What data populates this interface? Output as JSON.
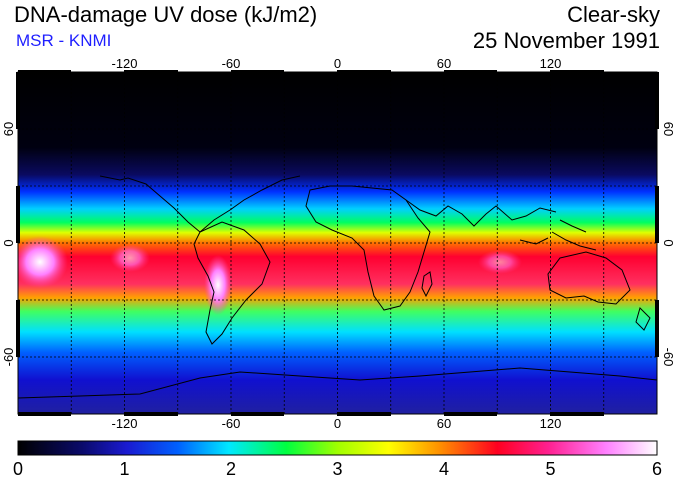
{
  "header": {
    "title": "DNA-damage UV dose (kJ/m2)",
    "subtitle": "MSR - KNMI",
    "mode": "Clear-sky",
    "date": "25 November 1991"
  },
  "map": {
    "projection": "equirectangular",
    "lon_range": [
      -180,
      180
    ],
    "lat_range": [
      -90,
      90
    ],
    "lon_ticks": [
      -120,
      -60,
      0,
      60,
      120
    ],
    "lat_ticks": [
      60,
      0,
      -60
    ],
    "lon_tick_labels": [
      "-120",
      "-60",
      "0",
      "60",
      "120"
    ],
    "lat_tick_labels": [
      "60",
      "0",
      "-60"
    ],
    "grid": true,
    "grid_spacing_deg": 30
  },
  "colorbar": {
    "min": 0,
    "max": 6,
    "tick_labels": [
      "0",
      "1",
      "2",
      "3",
      "4",
      "5",
      "6"
    ],
    "colors": [
      "#000000",
      "#1a1aa0",
      "#0040ff",
      "#00e8ff",
      "#00ff40",
      "#c8ff00",
      "#ffff00",
      "#ff8000",
      "#ff0030",
      "#ff40a0",
      "#ff80ff",
      "#ffffff"
    ]
  }
}
